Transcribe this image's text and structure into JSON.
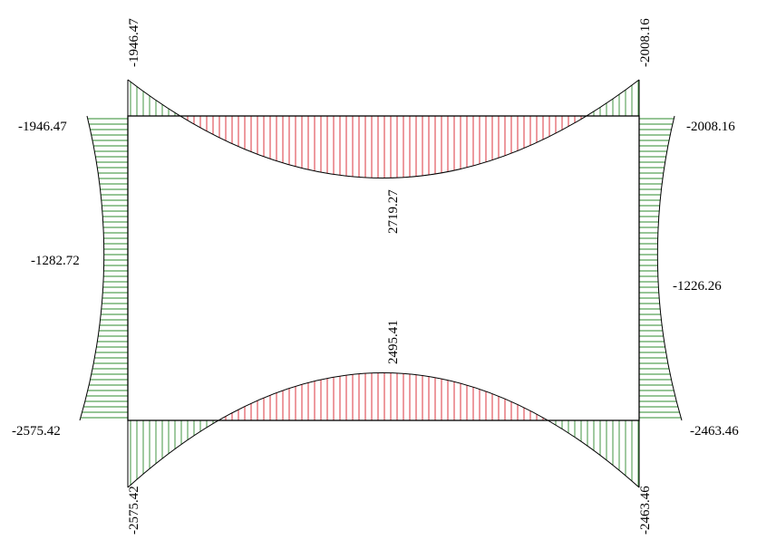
{
  "colors": {
    "negative": "#2e8b2e",
    "positive": "#d81e2a",
    "frame": "#000000"
  },
  "labels": {
    "top_left_vertical": "-1946.47",
    "top_left_horizontal": "-1946.47",
    "top_right_vertical": "-2008.16",
    "top_right_horizontal": "-2008.16",
    "top_beam_mid": "2719.27",
    "left_column_mid": "-1282.72",
    "right_column_mid": "-1226.26",
    "bottom_beam_mid": "2495.41",
    "bottom_left_horizontal": "-2575.42",
    "bottom_left_vertical": "-2575.42",
    "bottom_right_horizontal": "-2463.46",
    "bottom_right_vertical": "-2463.46"
  }
}
